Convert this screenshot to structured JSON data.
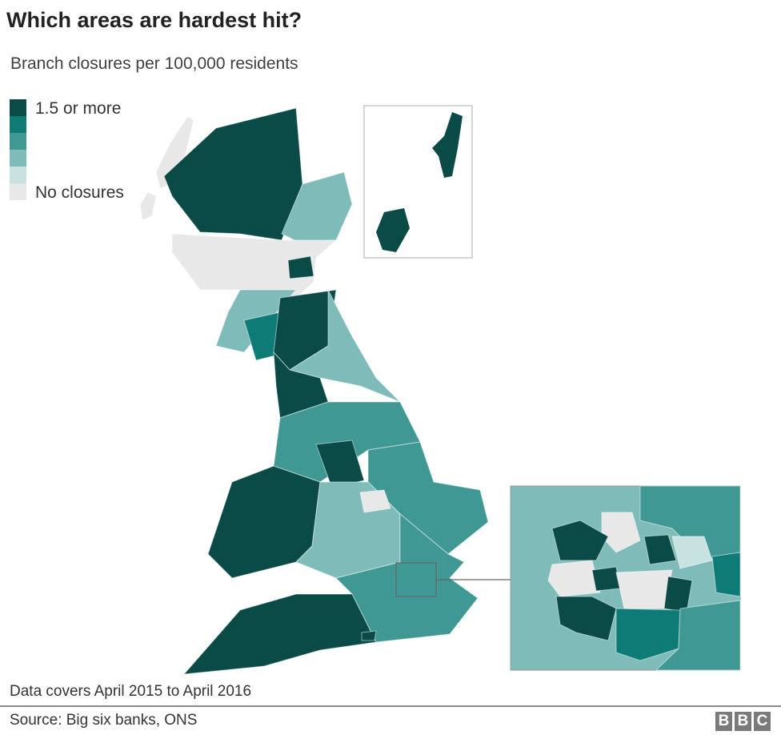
{
  "title": "Which areas are hardest hit?",
  "subtitle": "Branch closures per 100,000 residents",
  "legend": {
    "top_label": "1.5 or more",
    "bottom_label": "No closures",
    "colors": [
      "#0a4a47",
      "#0f7b76",
      "#3f9893",
      "#7fbcb9",
      "#c7e2e1",
      "#e8e8e8"
    ]
  },
  "insets": [
    "shetland-orkney",
    "london"
  ],
  "footnote": "Data covers April 2015 to April 2016",
  "source": "Source: Big six banks, ONS",
  "logo": {
    "letters": [
      "B",
      "B",
      "C"
    ]
  }
}
